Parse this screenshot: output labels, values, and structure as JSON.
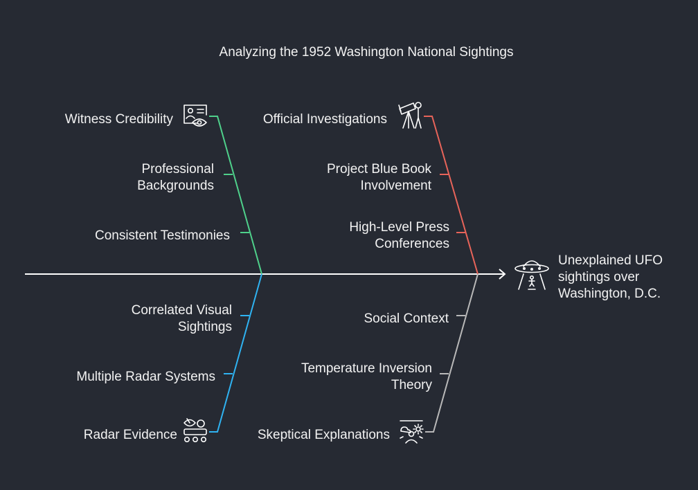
{
  "title": "Analyzing the 1952 Washington National Sightings",
  "effect": {
    "lines": [
      "Unexplained UFO",
      "sightings over",
      "Washington, D.C."
    ],
    "icon": "ufo-icon"
  },
  "colors": {
    "background": "#262a33",
    "spine": "#ffffff",
    "witness": "#4fd18b",
    "official": "#e8645a",
    "radar": "#2fb3f2",
    "skeptical": "#b9b9b9"
  },
  "categories": {
    "witness": {
      "label": "Witness Credibility",
      "icon": "id-card-eye-icon",
      "causes": [
        [
          "Professional",
          "Backgrounds"
        ],
        [
          "Consistent Testimonies"
        ]
      ]
    },
    "official": {
      "label": "Official Investigations",
      "icon": "telescope-icon",
      "causes": [
        [
          "Project Blue Book",
          "Involvement"
        ],
        [
          "High-Level Press",
          "Conferences"
        ]
      ]
    },
    "radar": {
      "label": "Radar Evidence",
      "icon": "radar-rover-icon",
      "causes": [
        [
          "Correlated Visual",
          "Sightings"
        ],
        [
          "Multiple Radar Systems"
        ]
      ]
    },
    "skeptical": {
      "label": "Skeptical Explanations",
      "icon": "weather-person-icon",
      "causes": [
        [
          "Social Context"
        ],
        [
          "Temperature Inversion",
          "Theory"
        ]
      ]
    }
  }
}
